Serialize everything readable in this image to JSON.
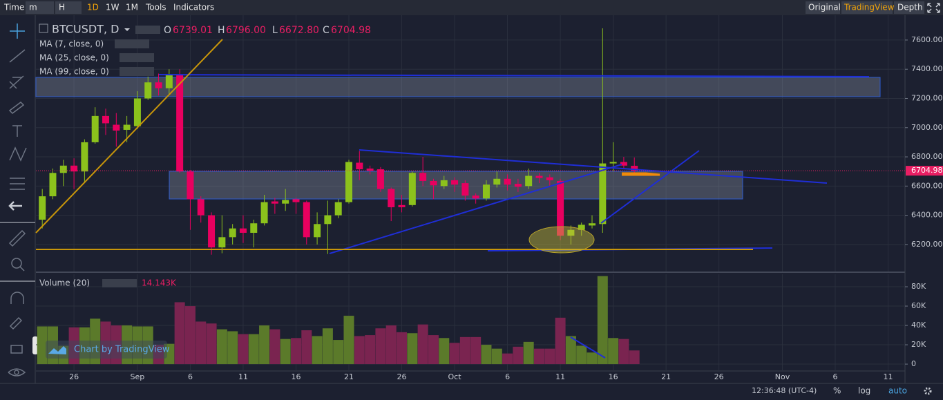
{
  "toolbar": {
    "left": [
      "Time",
      "m",
      "H",
      "1D",
      "1W",
      "1M",
      "Tools",
      "Indicators"
    ],
    "right": [
      "Original",
      "TradingView",
      "Depth"
    ]
  },
  "header": {
    "symbol": "BTCUSDT, D",
    "o": "O",
    "open": "6739.01",
    "h": "H",
    "high": "6796.00",
    "l": "L",
    "low": "6672.80",
    "c": "C",
    "close": "6704.98"
  },
  "indicators": [
    "MA (7, close, 0)",
    "MA (25, close, 0)",
    "MA (99, close, 0)"
  ],
  "watermark": "Chart by TradingView",
  "status": {
    "time": "12:36:48 (UTC-4)",
    "percent": "%",
    "log": "log",
    "auto": "auto"
  },
  "chart_data": [
    {
      "type": "candlestick",
      "up_color": "#8cc21c",
      "down_color": "#e8005f",
      "x": [
        0,
        1,
        2,
        3,
        4,
        5,
        6,
        7,
        8,
        9,
        10,
        11,
        12,
        13,
        14,
        15,
        16,
        17,
        18,
        19,
        20,
        21,
        22,
        23,
        24,
        25,
        26,
        27,
        28,
        29,
        30,
        31,
        32,
        33,
        34,
        35,
        36,
        37,
        38,
        39,
        40,
        41,
        42,
        43,
        44,
        45,
        46,
        47,
        48,
        49,
        50,
        51,
        52,
        53,
        54,
        55,
        56
      ],
      "open": [
        6370,
        6530,
        6690,
        6740,
        6700,
        6900,
        7080,
        7020,
        6985,
        7010,
        7200,
        7310,
        7270,
        7360,
        6700,
        6510,
        6400,
        6180,
        6250,
        6310,
        6280,
        6345,
        6495,
        6480,
        6510,
        6490,
        6250,
        6340,
        6400,
        6490,
        6760,
        6720,
        6715,
        6580,
        6470,
        6470,
        6690,
        6635,
        6600,
        6640,
        6620,
        6535,
        6515,
        6610,
        6650,
        6615,
        6600,
        6670,
        6660,
        6635,
        6260,
        6300,
        6330,
        6340,
        6755,
        6765,
        6739.01
      ],
      "high": [
        6580,
        6720,
        6780,
        6790,
        6920,
        7140,
        7130,
        7100,
        7080,
        7250,
        7350,
        7370,
        7400,
        7400,
        6710,
        6530,
        6420,
        6400,
        6340,
        6400,
        6370,
        6540,
        6520,
        6580,
        6520,
        6500,
        6420,
        6500,
        6510,
        6780,
        6840,
        6740,
        6730,
        6590,
        6540,
        6700,
        6800,
        6650,
        6670,
        6660,
        6640,
        6550,
        6640,
        6700,
        6680,
        6650,
        6720,
        6690,
        6680,
        6650,
        6330,
        6350,
        6400,
        7680,
        6900,
        6800,
        6796
      ],
      "low": [
        6310,
        6510,
        6600,
        6580,
        6620,
        6890,
        6950,
        6870,
        6900,
        6990,
        7190,
        7220,
        7230,
        6690,
        6300,
        6350,
        6130,
        6140,
        6200,
        6210,
        6180,
        6330,
        6410,
        6430,
        6410,
        6200,
        6200,
        6135,
        6380,
        6480,
        6640,
        6680,
        6560,
        6360,
        6420,
        6460,
        6600,
        6510,
        6580,
        6560,
        6500,
        6480,
        6500,
        6590,
        6570,
        6560,
        6580,
        6620,
        6600,
        6230,
        6200,
        6260,
        6310,
        6280,
        6700,
        6720,
        6672.8
      ],
      "close": [
        6530,
        6690,
        6740,
        6700,
        6900,
        7080,
        7030,
        6980,
        7020,
        7200,
        7310,
        7270,
        7365,
        6700,
        6510,
        6400,
        6180,
        6250,
        6310,
        6280,
        6345,
        6490,
        6480,
        6505,
        6490,
        6250,
        6340,
        6400,
        6490,
        6765,
        6715,
        6705,
        6580,
        6455,
        6455,
        6690,
        6635,
        6605,
        6640,
        6610,
        6535,
        6515,
        6610,
        6650,
        6610,
        6595,
        6670,
        6655,
        6640,
        6260,
        6300,
        6335,
        6345,
        6755,
        6765,
        6740,
        6704.98
      ],
      "xlim": [
        -0.6,
        81.6
      ],
      "xticks": [
        {
          "value": 3,
          "label": "26"
        },
        {
          "value": 9,
          "label": "Sep"
        },
        {
          "value": 14,
          "label": "6"
        },
        {
          "value": 19,
          "label": "11"
        },
        {
          "value": 24,
          "label": "16"
        },
        {
          "value": 29,
          "label": "21"
        },
        {
          "value": 34,
          "label": "26"
        },
        {
          "value": 39,
          "label": "Oct"
        },
        {
          "value": 44,
          "label": "6"
        },
        {
          "value": 49,
          "label": "11"
        },
        {
          "value": 54,
          "label": "16"
        },
        {
          "value": 59,
          "label": "21"
        },
        {
          "value": 64,
          "label": "26"
        },
        {
          "value": 70,
          "label": "Nov"
        },
        {
          "value": 75,
          "label": "6"
        },
        {
          "value": 80,
          "label": "11"
        }
      ],
      "ylim": [
        6015,
        7770
      ],
      "yticks": [
        {
          "value": 6200,
          "label": "6200.00"
        },
        {
          "value": 6400,
          "label": "6400.00"
        },
        {
          "value": 6600,
          "label": "6600.00"
        },
        {
          "value": 6800,
          "label": "6800.00"
        },
        {
          "value": 7000,
          "label": "7000.00"
        },
        {
          "value": 7200,
          "label": "7200.00"
        },
        {
          "value": 7400,
          "label": "7400.00"
        },
        {
          "value": 7600,
          "label": "7600.00"
        }
      ],
      "grid": true
    },
    {
      "type": "bar",
      "title": "Volume (20)",
      "up_color": "#5b7a2a",
      "down_color": "#7a2450",
      "values": [
        39000,
        39000,
        19000,
        38000,
        38000,
        47000,
        44000,
        40000,
        40000,
        39000,
        39000,
        20000,
        21000,
        64000,
        60000,
        44000,
        42000,
        36000,
        34000,
        31000,
        31000,
        40000,
        36000,
        26000,
        27000,
        35000,
        29000,
        37000,
        25000,
        50000,
        29000,
        30000,
        37000,
        40000,
        33000,
        32000,
        41000,
        30000,
        27000,
        22000,
        28000,
        28000,
        20000,
        16000,
        11000,
        18000,
        23000,
        16000,
        16000,
        48000,
        29000,
        19000,
        12000,
        91000,
        27000,
        26000,
        14143
      ],
      "value_labels": {
        "56": "14.143K"
      },
      "ylim": [
        -7100,
        92900
      ],
      "yticks": [
        0,
        {
          "value": 20000,
          "label": "20K"
        },
        {
          "value": 40000,
          "label": "40K"
        },
        {
          "value": 60000,
          "label": "60K"
        },
        {
          "value": 80000,
          "label": "80K"
        }
      ],
      "grid": true
    }
  ]
}
